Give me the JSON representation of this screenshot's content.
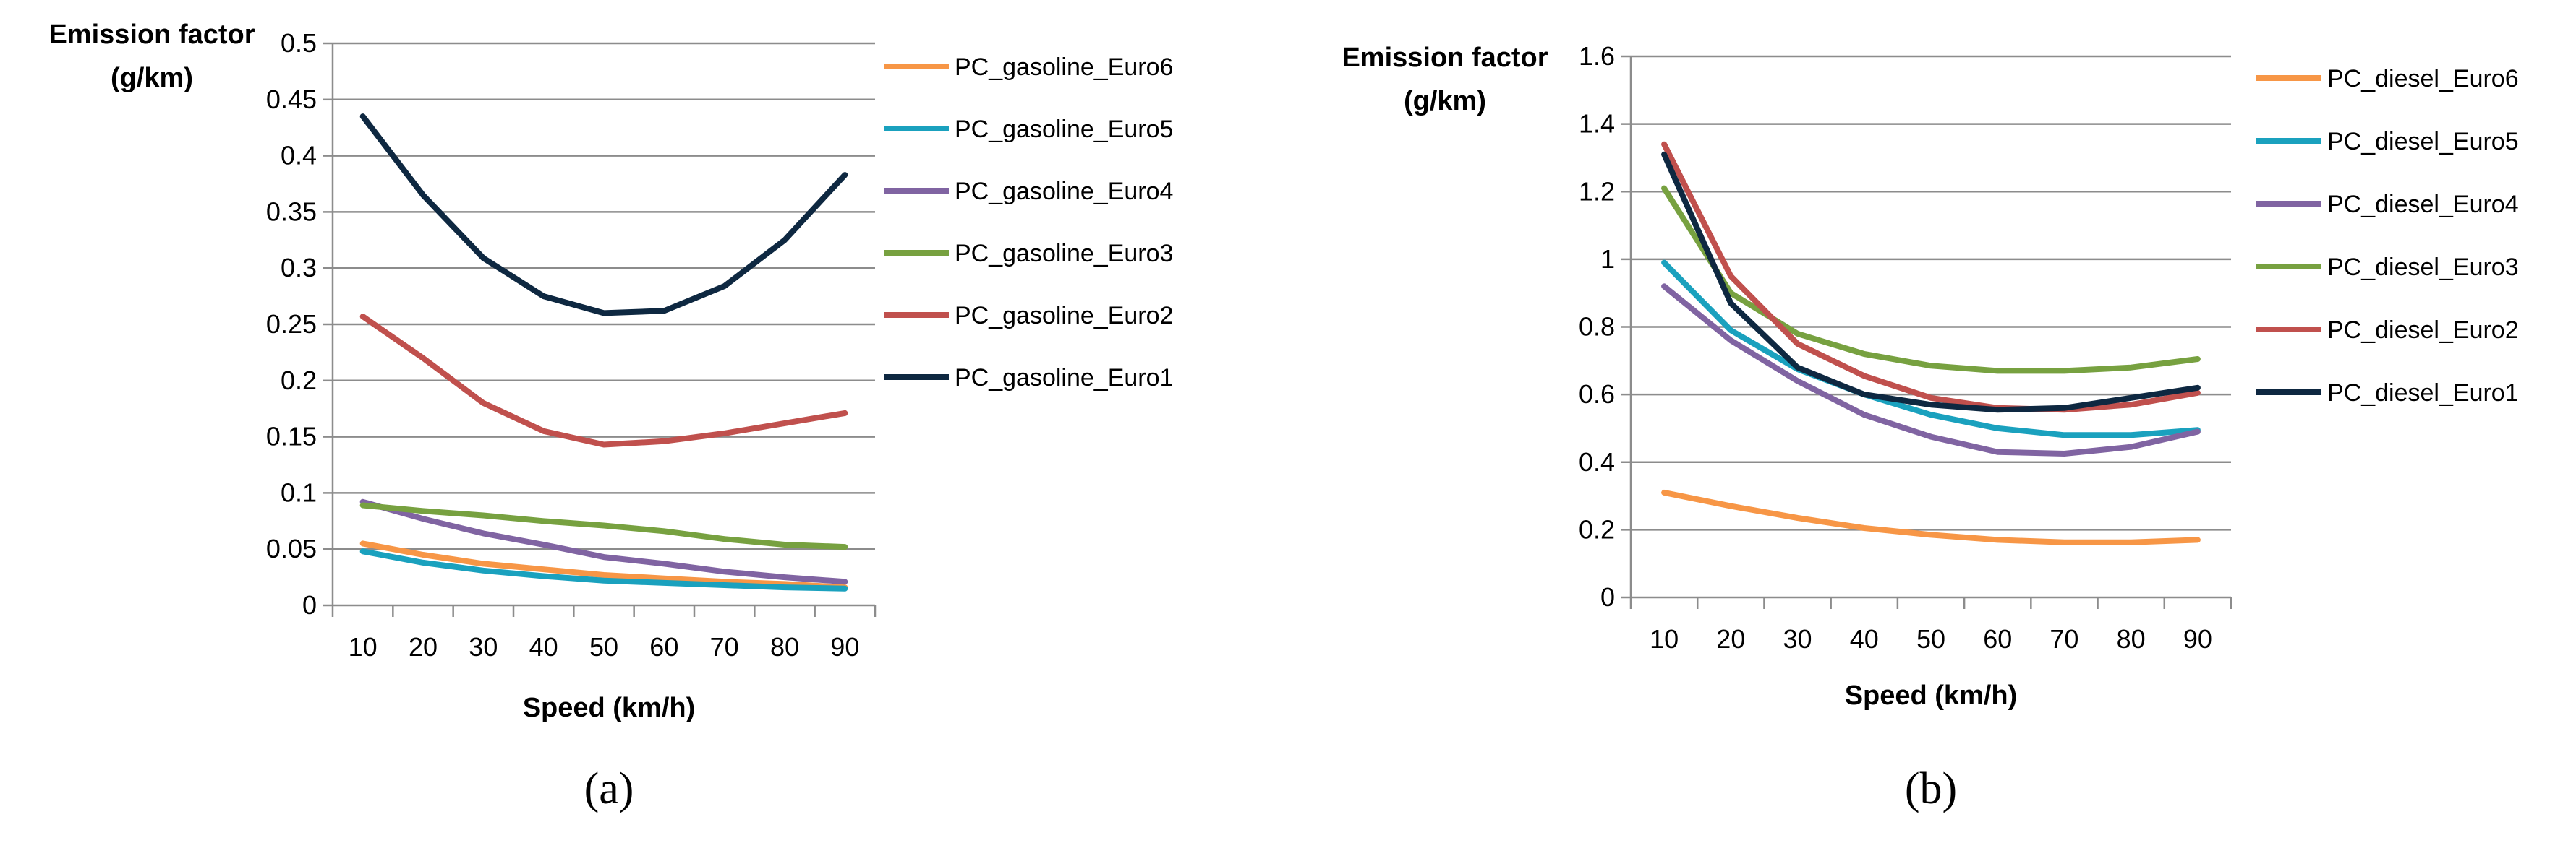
{
  "chart_data": [
    {
      "type": "line",
      "panel_label": "(a)",
      "ylabel_line1": "Emission factor",
      "ylabel_line2": "(g/km)",
      "xlabel": "Speed (km/h)",
      "x": [
        10,
        20,
        30,
        40,
        50,
        60,
        70,
        80,
        90
      ],
      "xlim": [
        5,
        95
      ],
      "ylim": [
        0,
        0.5
      ],
      "yticks": [
        0,
        0.05,
        0.1,
        0.15,
        0.2,
        0.25,
        0.3,
        0.35,
        0.4,
        0.45,
        0.5
      ],
      "ytick_labels": [
        "0",
        "0.05",
        "0.1",
        "0.15",
        "0.2",
        "0.25",
        "0.3",
        "0.35",
        "0.4",
        "0.45",
        "0.5"
      ],
      "xtick_labels": [
        "10",
        "20",
        "30",
        "40",
        "50",
        "60",
        "70",
        "80",
        "90"
      ],
      "grid": "horizontal",
      "legend_position": "right",
      "series": [
        {
          "name": "PC_gasoline_Euro6",
          "color": "#F79646",
          "values": [
            0.055,
            0.045,
            0.037,
            0.032,
            0.027,
            0.024,
            0.021,
            0.019,
            0.016
          ]
        },
        {
          "name": "PC_gasoline_Euro5",
          "color": "#1AA1BE",
          "values": [
            0.048,
            0.038,
            0.031,
            0.026,
            0.022,
            0.02,
            0.018,
            0.016,
            0.015
          ]
        },
        {
          "name": "PC_gasoline_Euro4",
          "color": "#8064A2",
          "values": [
            0.092,
            0.077,
            0.064,
            0.054,
            0.043,
            0.037,
            0.03,
            0.025,
            0.021
          ]
        },
        {
          "name": "PC_gasoline_Euro3",
          "color": "#77A140",
          "values": [
            0.089,
            0.084,
            0.08,
            0.075,
            0.071,
            0.066,
            0.059,
            0.054,
            0.052
          ]
        },
        {
          "name": "PC_gasoline_Euro2",
          "color": "#C0504D",
          "values": [
            0.257,
            0.22,
            0.18,
            0.155,
            0.143,
            0.146,
            0.153,
            0.162,
            0.171
          ]
        },
        {
          "name": "PC_gasoline_Euro1",
          "color": "#0E2841",
          "values": [
            0.435,
            0.365,
            0.309,
            0.275,
            0.26,
            0.262,
            0.284,
            0.325,
            0.383
          ]
        }
      ]
    },
    {
      "type": "line",
      "panel_label": "(b)",
      "ylabel_line1": "Emission factor",
      "ylabel_line2": "(g/km)",
      "xlabel": "Speed (km/h)",
      "x": [
        10,
        20,
        30,
        40,
        50,
        60,
        70,
        80,
        90
      ],
      "xlim": [
        5,
        95
      ],
      "ylim": [
        0,
        1.6
      ],
      "yticks": [
        0,
        0.2,
        0.4,
        0.6,
        0.8,
        1,
        1.2,
        1.4,
        1.6
      ],
      "ytick_labels": [
        "0",
        "0.2",
        "0.4",
        "0.6",
        "0.8",
        "1",
        "1.2",
        "1.4",
        "1.6"
      ],
      "xtick_labels": [
        "10",
        "20",
        "30",
        "40",
        "50",
        "60",
        "70",
        "80",
        "90"
      ],
      "grid": "horizontal",
      "legend_position": "right",
      "series": [
        {
          "name": "PC_diesel_Euro6",
          "color": "#F79646",
          "values": [
            0.31,
            0.27,
            0.235,
            0.205,
            0.185,
            0.17,
            0.163,
            0.163,
            0.17
          ]
        },
        {
          "name": "PC_diesel_Euro5",
          "color": "#1AA1BE",
          "values": [
            0.99,
            0.79,
            0.675,
            0.6,
            0.54,
            0.5,
            0.48,
            0.48,
            0.495
          ]
        },
        {
          "name": "PC_diesel_Euro4",
          "color": "#8064A2",
          "values": [
            0.92,
            0.76,
            0.64,
            0.54,
            0.475,
            0.43,
            0.425,
            0.445,
            0.49
          ]
        },
        {
          "name": "PC_diesel_Euro3",
          "color": "#77A140",
          "values": [
            1.21,
            0.9,
            0.78,
            0.72,
            0.685,
            0.67,
            0.67,
            0.68,
            0.705
          ]
        },
        {
          "name": "PC_diesel_Euro2",
          "color": "#C0504D",
          "values": [
            1.34,
            0.95,
            0.75,
            0.655,
            0.59,
            0.56,
            0.555,
            0.57,
            0.605
          ]
        },
        {
          "name": "PC_diesel_Euro1",
          "color": "#0E2841",
          "values": [
            1.31,
            0.87,
            0.68,
            0.6,
            0.57,
            0.555,
            0.56,
            0.59,
            0.62
          ]
        }
      ]
    }
  ]
}
